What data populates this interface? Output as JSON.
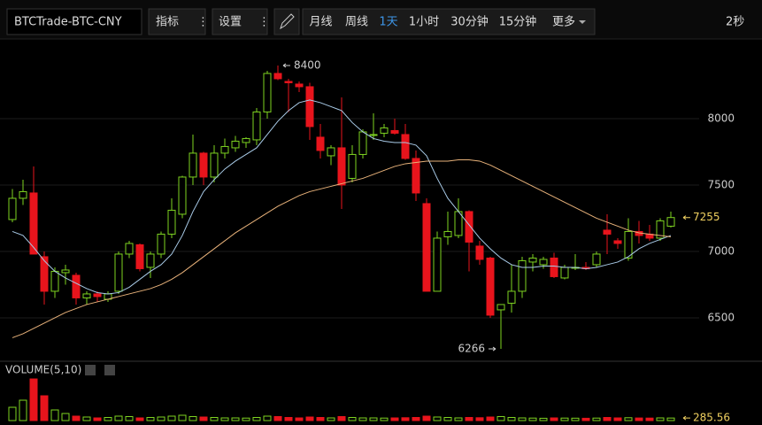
{
  "toolbar": {
    "symbol": "BTCTrade-BTC-CNY",
    "indicators": "指标",
    "settings": "设置",
    "periods": [
      "月线",
      "周线",
      "1天",
      "1小时",
      "30分钟",
      "15分钟"
    ],
    "active_period": 2,
    "more": "更多",
    "refresh": "2秒"
  },
  "chart_data": {
    "type": "candlestick",
    "categories": [
      null,
      null,
      null,
      null,
      null,
      null,
      null,
      null,
      null,
      null,
      null,
      null,
      null,
      null,
      null,
      null,
      null,
      null,
      null,
      null,
      null,
      null,
      null,
      null,
      null,
      null,
      null,
      null,
      null,
      null,
      null,
      null,
      null,
      null,
      null,
      null,
      null,
      null,
      null,
      null,
      null,
      null,
      null,
      null,
      null,
      null,
      null,
      null,
      null,
      null,
      null,
      null,
      null,
      null,
      null,
      null,
      null,
      null,
      null,
      null,
      null,
      null,
      null
    ],
    "open": [
      7240,
      7400,
      7440,
      6960,
      6700,
      6840,
      6820,
      6650,
      6680,
      6640,
      6700,
      6980,
      7050,
      6880,
      6980,
      7130,
      7280,
      7560,
      7740,
      7560,
      7740,
      7780,
      7820,
      7840,
      8050,
      8340,
      8280,
      8260,
      8240,
      7860,
      7720,
      7780,
      7550,
      7730,
      7880,
      7890,
      7910,
      7880,
      7700,
      7360,
      6700,
      7110,
      7120,
      7300,
      7040,
      6950,
      6560,
      6610,
      6700,
      6920,
      6900,
      6950,
      6800,
      6880,
      6880,
      6900,
      7160,
      7080,
      6950,
      7150,
      7130,
      7100,
      7190
    ],
    "high": [
      7470,
      7540,
      7640,
      7000,
      6880,
      6900,
      6840,
      6700,
      6700,
      6700,
      7000,
      7080,
      7060,
      7000,
      7150,
      7400,
      7570,
      7880,
      7750,
      7800,
      7850,
      7870,
      7860,
      8080,
      8360,
      8400,
      8300,
      8280,
      8270,
      7960,
      7800,
      8160,
      7800,
      7920,
      8040,
      7960,
      8000,
      7960,
      7760,
      7400,
      7150,
      7300,
      7400,
      7310,
      7080,
      6960,
      6600,
      6900,
      6960,
      6980,
      6960,
      6990,
      6900,
      6980,
      6920,
      7000,
      7280,
      7100,
      7250,
      7230,
      7200,
      7250,
      7300
    ],
    "low": [
      7220,
      7350,
      6980,
      6600,
      6650,
      6750,
      6600,
      6600,
      6620,
      6620,
      6680,
      6950,
      6850,
      6800,
      6950,
      7100,
      7250,
      7500,
      7500,
      7520,
      7700,
      7750,
      7780,
      7800,
      8000,
      8290,
      8050,
      8200,
      7840,
      7700,
      7650,
      7320,
      7520,
      7700,
      7840,
      7860,
      7880,
      7690,
      7380,
      6700,
      6700,
      7050,
      7100,
      6850,
      6900,
      6500,
      6266,
      6540,
      6650,
      6850,
      6870,
      6800,
      6790,
      6860,
      6860,
      6880,
      6980,
      7020,
      6930,
      7060,
      7080,
      7080,
      7180
    ],
    "close": [
      7400,
      7450,
      6980,
      6700,
      6850,
      6860,
      6650,
      6680,
      6660,
      6680,
      6980,
      7060,
      6870,
      6980,
      7130,
      7310,
      7560,
      7740,
      7560,
      7740,
      7790,
      7830,
      7850,
      8050,
      8340,
      8300,
      8270,
      8240,
      7940,
      7760,
      7780,
      7500,
      7730,
      7900,
      7880,
      7930,
      7890,
      7700,
      7440,
      6700,
      7100,
      7150,
      7300,
      7070,
      6940,
      6520,
      6600,
      6700,
      6930,
      6950,
      6940,
      6810,
      6880,
      6880,
      6870,
      6980,
      7130,
      7060,
      7150,
      7120,
      7100,
      7230,
      7255
    ],
    "up_color": "#7ed321",
    "down_color": "#e8141c",
    "ma_lines": [
      {
        "color": "#a9cbe8",
        "values": [
          7150,
          7120,
          7030,
          6930,
          6850,
          6800,
          6760,
          6720,
          6690,
          6680,
          6690,
          6730,
          6790,
          6850,
          6900,
          6980,
          7120,
          7300,
          7450,
          7540,
          7620,
          7680,
          7730,
          7780,
          7880,
          7980,
          8060,
          8120,
          8140,
          8120,
          8090,
          8060,
          7970,
          7900,
          7850,
          7830,
          7820,
          7820,
          7800,
          7720,
          7550,
          7400,
          7300,
          7200,
          7100,
          7020,
          6950,
          6900,
          6880,
          6880,
          6890,
          6890,
          6880,
          6880,
          6870,
          6880,
          6900,
          6920,
          6960,
          7020,
          7060,
          7090,
          7120
        ]
      },
      {
        "color": "#e8b27a",
        "values": [
          6350,
          6380,
          6420,
          6460,
          6500,
          6540,
          6570,
          6600,
          6620,
          6640,
          6660,
          6680,
          6700,
          6720,
          6750,
          6790,
          6840,
          6900,
          6960,
          7020,
          7080,
          7140,
          7190,
          7240,
          7290,
          7340,
          7380,
          7420,
          7450,
          7470,
          7490,
          7510,
          7530,
          7550,
          7580,
          7610,
          7640,
          7660,
          7670,
          7680,
          7680,
          7680,
          7690,
          7690,
          7680,
          7650,
          7610,
          7570,
          7530,
          7490,
          7450,
          7410,
          7370,
          7330,
          7290,
          7250,
          7220,
          7190,
          7160,
          7140,
          7130,
          7120,
          7110
        ]
      }
    ],
    "ylim": [
      6193,
      8593
    ],
    "yticks": [
      6500,
      7000,
      7500,
      8000
    ],
    "grid": true,
    "max_label": 8400,
    "min_label": 6266,
    "last_label": 7255,
    "volume": {
      "label": "VOLUME(5,10)",
      "ylim": [
        0,
        5000
      ],
      "values": [
        1500,
        2300,
        4700,
        2800,
        1200,
        800,
        500,
        400,
        300,
        350,
        500,
        450,
        300,
        350,
        400,
        500,
        600,
        450,
        400,
        350,
        300,
        300,
        280,
        350,
        500,
        450,
        350,
        300,
        400,
        350,
        300,
        450,
        350,
        300,
        300,
        280,
        300,
        320,
        350,
        500,
        400,
        350,
        300,
        350,
        320,
        400,
        450,
        350,
        300,
        280,
        260,
        300,
        280,
        270,
        260,
        280,
        350,
        300,
        320,
        290,
        280,
        300,
        285.56
      ]
    }
  }
}
